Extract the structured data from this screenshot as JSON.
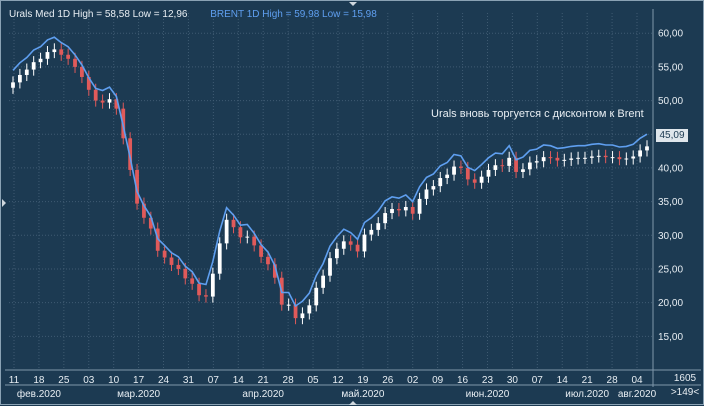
{
  "header": {
    "urals_legend": "Urals Med 1D High = 58,58 Low = 12,96",
    "brent_legend": "BRENT 1D High = 59,98 Low = 15,98"
  },
  "annotation": "Urals вновь торгуется с дисконтом к Brent",
  "price_tag": "45,09",
  "corner": {
    "top": "1605",
    "bottom": ">149<"
  },
  "colors": {
    "background": "#1c3a52",
    "grid": "#3f5b72",
    "up_candle": "#ffffff",
    "down_candle": "#e05a5a",
    "brent_line": "#5f9ff0",
    "text": "#e8eef3"
  },
  "chart_data": {
    "type": "line",
    "ylim": [
      10,
      63
    ],
    "y_ticks": [
      "60,00",
      "55,00",
      "50,00",
      "45,00",
      "40,00",
      "35,00",
      "30,00",
      "25,00",
      "20,00",
      "15,00"
    ],
    "y_tick_values": [
      60,
      55,
      50,
      45,
      40,
      35,
      30,
      25,
      20,
      15
    ],
    "x_ticks": [
      "11",
      "18",
      "25",
      "03",
      "10",
      "17",
      "24",
      "31",
      "07",
      "14",
      "21",
      "28",
      "05",
      "12",
      "19",
      "26",
      "02",
      "09",
      "16",
      "23",
      "30",
      "07",
      "14",
      "21",
      "28",
      "04"
    ],
    "month_labels": [
      "фев.2020",
      "мар.2020",
      "апр.2020",
      "май.2020",
      "июн.2020",
      "июл.2020",
      "авг.2020"
    ],
    "month_label_ticks": [
      1,
      5,
      10,
      14,
      19,
      23,
      25
    ],
    "series": [
      {
        "name": "BRENT",
        "kind": "line",
        "values": [
          54.5,
          55.6,
          56.4,
          57.5,
          58.0,
          59.0,
          59.4,
          58.6,
          58.0,
          56.8,
          55.3,
          53.4,
          51.8,
          51.5,
          52.0,
          50.6,
          46.2,
          41.5,
          36.5,
          34.4,
          32.8,
          29.5,
          28.5,
          27.4,
          26.8,
          25.4,
          24.6,
          22.9,
          22.7,
          26.1,
          30.6,
          34.1,
          33.0,
          31.5,
          31.6,
          30.3,
          28.6,
          27.5,
          25.5,
          21.5,
          21.5,
          19.5,
          20.2,
          21.4,
          24.0,
          25.8,
          28.4,
          29.8,
          30.9,
          30.4,
          29.4,
          31.9,
          32.6,
          33.6,
          35.1,
          35.7,
          35.5,
          36.0,
          35.0,
          37.2,
          38.6,
          39.1,
          40.3,
          40.8,
          42.0,
          41.8,
          40.1,
          39.6,
          40.5,
          41.5,
          42.2,
          42.1,
          43.3,
          41.2,
          41.6,
          42.6,
          42.8,
          43.4,
          43.3,
          42.9,
          43.0,
          43.2,
          43.3,
          43.3,
          43.5,
          43.6,
          43.4,
          43.4,
          43.1,
          43.2,
          43.5,
          44.4,
          45.0
        ]
      },
      {
        "name": "Urals Med",
        "kind": "candles",
        "close": [
          52.7,
          53.8,
          54.6,
          55.7,
          56.2,
          57.2,
          57.6,
          56.8,
          56.2,
          55.0,
          53.5,
          51.6,
          50.0,
          49.7,
          50.2,
          48.8,
          44.4,
          39.7,
          34.7,
          32.6,
          31.0,
          27.7,
          26.7,
          25.6,
          25.0,
          23.6,
          22.8,
          21.1,
          20.9,
          24.3,
          28.8,
          32.3,
          31.2,
          29.7,
          29.8,
          28.5,
          26.8,
          25.7,
          23.7,
          19.7,
          19.7,
          17.7,
          18.4,
          19.6,
          22.2,
          24.0,
          26.6,
          28.0,
          29.1,
          28.6,
          27.6,
          30.1,
          30.8,
          31.8,
          33.3,
          33.9,
          33.7,
          34.2,
          33.2,
          35.4,
          36.8,
          37.3,
          38.5,
          39.0,
          40.2,
          40.0,
          38.3,
          37.8,
          38.7,
          39.7,
          40.4,
          40.3,
          41.5,
          39.4,
          39.8,
          40.8,
          41.0,
          41.6,
          41.5,
          41.1,
          41.2,
          41.4,
          41.5,
          41.5,
          41.7,
          41.8,
          41.6,
          41.6,
          41.3,
          41.4,
          41.7,
          42.6,
          43.2
        ]
      }
    ]
  }
}
